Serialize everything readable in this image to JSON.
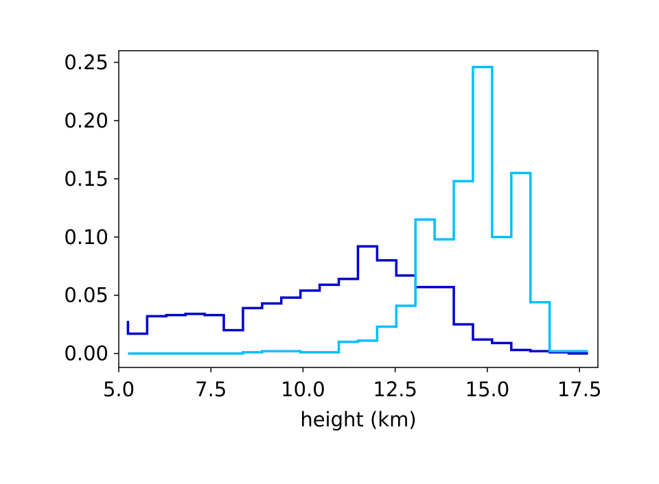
{
  "chart_data": {
    "type": "line",
    "step": true,
    "title": "",
    "xlabel": "height (km)",
    "ylabel": "",
    "xlim": [
      5.0,
      18.0
    ],
    "ylim": [
      -0.012,
      0.26
    ],
    "grid": false,
    "xticks": [
      5.0,
      7.5,
      10.0,
      12.5,
      15.0,
      17.5
    ],
    "xtick_labels": [
      "5.0",
      "7.5",
      "10.0",
      "12.5",
      "15.0",
      "17.5"
    ],
    "yticks": [
      0.0,
      0.05,
      0.1,
      0.15,
      0.2,
      0.25
    ],
    "ytick_labels": [
      "0.00",
      "0.05",
      "0.10",
      "0.15",
      "0.20",
      "0.25"
    ],
    "bin_edges": [
      5.25,
      5.77,
      6.29,
      6.81,
      7.33,
      7.85,
      8.37,
      8.89,
      9.41,
      9.93,
      10.45,
      10.97,
      11.49,
      12.01,
      12.53,
      13.05,
      13.57,
      14.09,
      14.61,
      15.13,
      15.65,
      16.17,
      16.69,
      17.21,
      17.73
    ],
    "series": [
      {
        "color": "#0000cc",
        "values": [
          0.017,
          0.032,
          0.033,
          0.034,
          0.033,
          0.02,
          0.039,
          0.043,
          0.048,
          0.054,
          0.059,
          0.064,
          0.092,
          0.08,
          0.067,
          0.057,
          0.057,
          0.025,
          0.012,
          0.009,
          0.003,
          0.002,
          0.001,
          0.0
        ],
        "start_value": 0.028
      },
      {
        "color": "#00bfff",
        "values": [
          0.0,
          0.0,
          0.0,
          0.0,
          0.0,
          0.0,
          0.001,
          0.002,
          0.002,
          0.001,
          0.001,
          0.01,
          0.011,
          0.023,
          0.041,
          0.115,
          0.098,
          0.148,
          0.246,
          0.1,
          0.155,
          0.044,
          0.002,
          0.002
        ],
        "start_value": 0.0
      }
    ]
  }
}
